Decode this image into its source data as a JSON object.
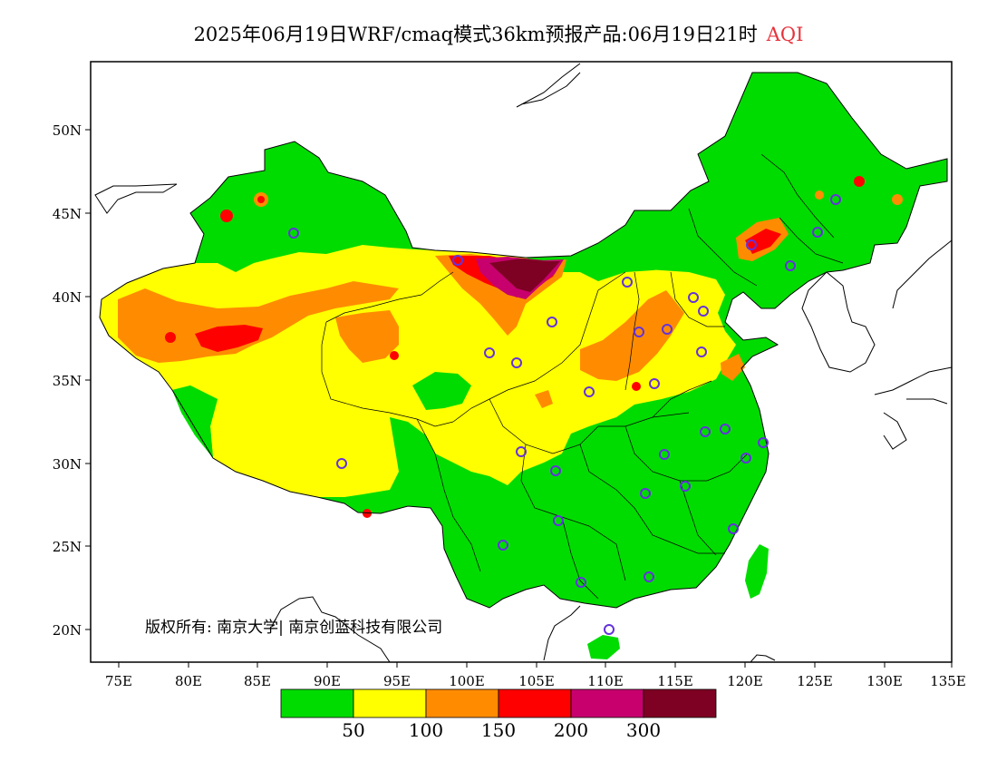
{
  "title": {
    "main": "2025年06月19日WRF/cmaq模式36km预报产品:06月19日21时",
    "variable": "AQI",
    "variable_color": "#e8323c"
  },
  "map": {
    "lon_ticks": [
      "75E",
      "80E",
      "85E",
      "90E",
      "95E",
      "100E",
      "105E",
      "110E",
      "115E",
      "120E",
      "125E",
      "130E",
      "135E"
    ],
    "lat_ticks": [
      "20N",
      "25N",
      "30N",
      "35N",
      "40N",
      "45N",
      "50N"
    ],
    "copyright": "版权所有: 南京大学| 南京创蓝科技有限公司",
    "colors": {
      "green": "#00dc00",
      "yellow": "#ffff00",
      "orange": "#ff8c00",
      "red": "#ff0000",
      "magenta": "#c8006e",
      "maroon": "#7e0023",
      "station": "#6432dc"
    }
  },
  "legend": {
    "colors": [
      "#00dc00",
      "#ffff00",
      "#ff8c00",
      "#ff0000",
      "#c8006e",
      "#7e0023"
    ],
    "labels": [
      "50",
      "100",
      "150",
      "200",
      "300"
    ]
  }
}
